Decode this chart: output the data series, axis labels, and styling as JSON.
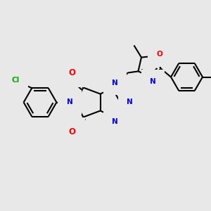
{
  "background_color": "#e8e8e8",
  "bond_color": "#000000",
  "bond_width": 1.5,
  "atom_colors": {
    "N": "#0000ff",
    "O": "#ff0000",
    "Cl": "#00aa00",
    "C": "#000000"
  },
  "figsize": [
    3.0,
    3.0
  ],
  "dpi": 100
}
